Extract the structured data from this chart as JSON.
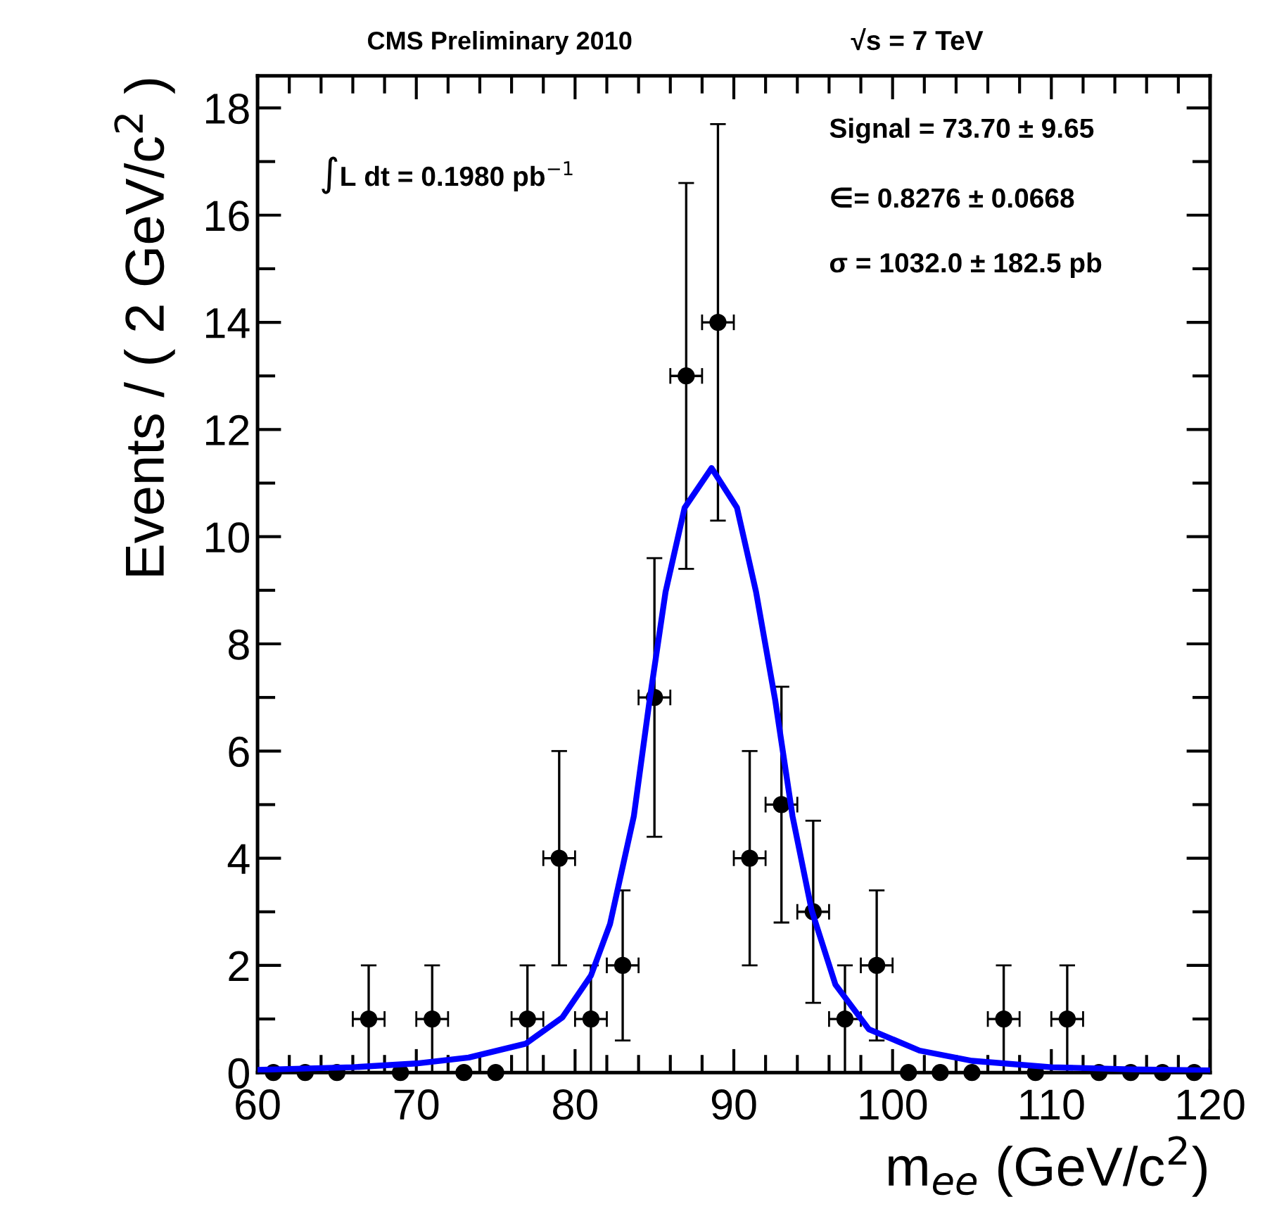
{
  "chart_data": {
    "type": "scatter",
    "title": "CMS Preliminary 2010",
    "xlabel": "m$_{ee}$ (GeV/c$^{2}$)",
    "ylabel": "Events / ( 2 GeV/c$^{2}$ )",
    "annotations": [
      "√s = 7 TeV",
      "∫L dt = 0.1980 pb$^{−1}$",
      "Signal = 73.70 ± 9.65",
      "∈= 0.8276 ± 0.0668",
      "σ = 1032.0 ± 182.5 pb"
    ],
    "xlim": [
      60,
      120
    ],
    "ylim": [
      0,
      18.6
    ],
    "xticks": [
      60,
      70,
      80,
      90,
      100,
      110,
      120
    ],
    "yticks": [
      0,
      2,
      4,
      6,
      8,
      10,
      12,
      14,
      16,
      18
    ],
    "grid": false,
    "legend": false,
    "series": [
      {
        "type": "scatter",
        "color": "#000000",
        "marker": "circle",
        "x": [
          61,
          63,
          65,
          67,
          69,
          71,
          73,
          75,
          77,
          79,
          81,
          83,
          85,
          87,
          89,
          91,
          93,
          95,
          97,
          99,
          101,
          103,
          105,
          107,
          109,
          111,
          113,
          115,
          117,
          119
        ],
        "values": [
          0,
          0,
          0,
          1,
          0,
          1,
          0,
          0,
          1,
          4,
          1,
          2,
          7,
          13,
          14,
          4,
          5,
          3,
          1,
          2,
          0,
          0,
          0,
          1,
          0,
          1,
          0,
          0,
          0,
          0
        ],
        "errors": [
          null,
          null,
          null,
          1,
          null,
          1,
          null,
          null,
          1,
          2,
          1,
          1.4,
          2.6,
          3.6,
          3.7,
          2,
          2.2,
          1.7,
          1,
          1.4,
          null,
          null,
          null,
          1,
          null,
          1,
          null,
          null,
          null,
          null
        ],
        "xerrors": [
          null,
          null,
          null,
          1,
          null,
          1,
          null,
          null,
          1,
          1,
          1,
          1,
          1,
          1,
          1,
          1,
          1,
          1,
          1,
          1,
          null,
          null,
          null,
          1,
          null,
          1,
          null,
          null,
          null,
          null
        ]
      },
      {
        "type": "line",
        "color": "#0000ff",
        "marker": "none",
        "line_style": "solid",
        "x": [
          60,
          66,
          70,
          73.3,
          76.9,
          79.2,
          81,
          82.2,
          83.7,
          84.7,
          85.7,
          86.9,
          88.6,
          90.2,
          91.4,
          92.6,
          93.7,
          94.9,
          96.4,
          98.5,
          101.7,
          105,
          110,
          115,
          120
        ],
        "values": [
          0.05,
          0.1,
          0.17,
          0.28,
          0.54,
          1.03,
          1.81,
          2.77,
          4.78,
          6.96,
          8.97,
          10.54,
          11.28,
          10.54,
          8.97,
          6.96,
          4.78,
          3.03,
          1.64,
          0.81,
          0.41,
          0.22,
          0.1,
          0.06,
          0.04
        ]
      }
    ]
  }
}
